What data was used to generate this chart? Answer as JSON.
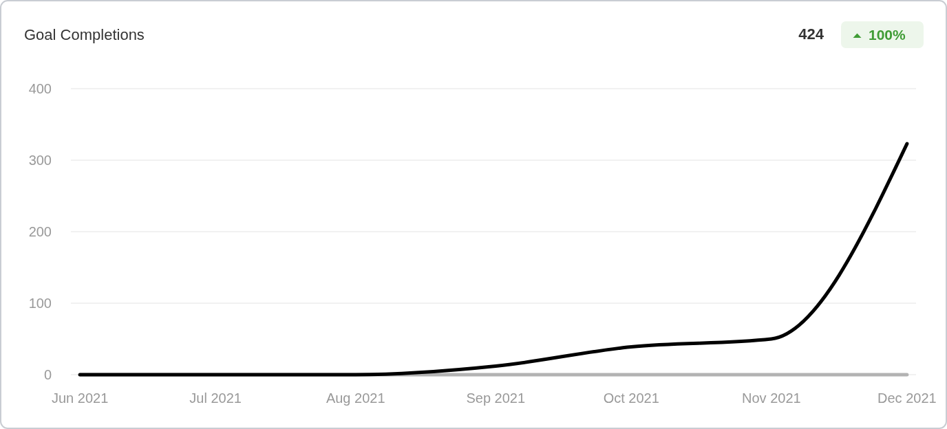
{
  "chart_data": {
    "type": "line",
    "title": "Goal Completions",
    "annotations": [
      "424",
      "100%"
    ],
    "x": [
      "2021-06-01",
      "2021-07-01",
      "2021-08-01",
      "2021-09-01",
      "2021-10-01",
      "2021-11-01",
      "2021-12-01"
    ],
    "series": [
      {
        "color": "#b3b3b3",
        "values": [
          0,
          0,
          0,
          0,
          0,
          0,
          0
        ]
      },
      {
        "color": "#000000",
        "values": [
          0,
          0,
          0,
          12,
          39,
          50,
          323
        ]
      }
    ],
    "xlim": [
      "2021-05-30",
      "2021-12-03"
    ],
    "xticks": [
      {
        "value": "2021-06-01",
        "label": "Jun 2021"
      },
      {
        "value": "2021-07-01",
        "label": "Jul 2021"
      },
      {
        "value": "2021-08-01",
        "label": "Aug 2021"
      },
      {
        "value": "2021-09-01",
        "label": "Sep 2021"
      },
      {
        "value": "2021-10-01",
        "label": "Oct 2021"
      },
      {
        "value": "2021-11-01",
        "label": "Nov 2021"
      },
      {
        "value": "2021-12-01",
        "label": "Dec 2021"
      }
    ],
    "ylim": [
      0,
      400
    ],
    "yticks": [
      0,
      100,
      200,
      300,
      400
    ],
    "grid": "y",
    "line_style": "solid"
  }
}
